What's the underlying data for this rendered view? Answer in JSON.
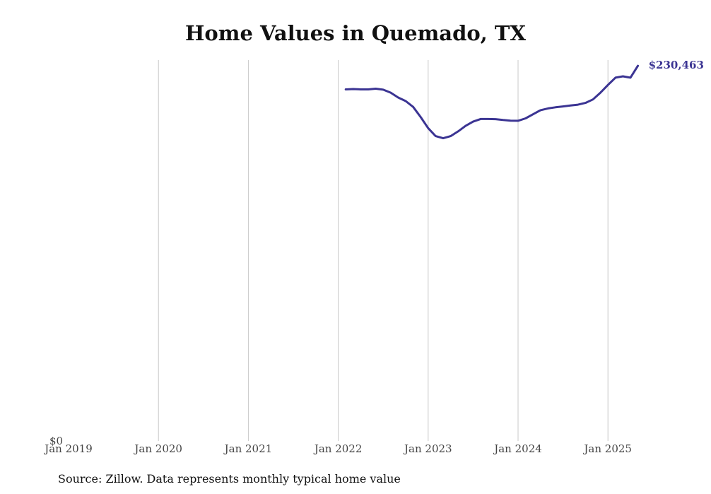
{
  "chart_data": {
    "type": "line",
    "title": "Home Values in Quemado, TX",
    "xlabel": "",
    "ylabel": "",
    "x_ticks": [
      "Jan 2019",
      "Jan 2020",
      "Jan 2021",
      "Jan 2022",
      "Jan 2023",
      "Jan 2024",
      "Jan 2025"
    ],
    "y_ticks": [
      "$0"
    ],
    "ylim": [
      0,
      234000
    ],
    "grid": "vertical",
    "line_color": "#3b3493",
    "end_label": "$230,463",
    "series": [
      {
        "x": [
          "2022-02",
          "2022-03",
          "2022-04",
          "2022-05",
          "2022-06",
          "2022-07",
          "2022-08",
          "2022-09",
          "2022-10",
          "2022-11",
          "2022-12",
          "2023-01",
          "2023-02",
          "2023-03",
          "2023-04",
          "2023-05",
          "2023-06",
          "2023-07",
          "2023-08",
          "2023-09",
          "2023-10",
          "2023-11",
          "2023-12",
          "2024-01",
          "2024-02",
          "2024-03",
          "2024-04",
          "2024-05",
          "2024-06",
          "2024-07",
          "2024-08",
          "2024-09",
          "2024-10",
          "2024-11",
          "2024-12",
          "2025-01",
          "2025-02",
          "2025-03",
          "2025-04",
          "2025-05"
        ],
        "values": [
          216000,
          216200,
          216000,
          216000,
          216400,
          215800,
          214000,
          211000,
          208800,
          205200,
          199000,
          192200,
          187300,
          186000,
          187300,
          190200,
          193600,
          196200,
          197800,
          197800,
          197700,
          197200,
          196800,
          196700,
          198200,
          200700,
          203200,
          204300,
          205000,
          205500,
          206100,
          206600,
          207700,
          209800,
          214000,
          218700,
          223200,
          224000,
          223200,
          230463
        ]
      }
    ]
  },
  "source": "Source: Zillow. Data represents monthly typical home value"
}
